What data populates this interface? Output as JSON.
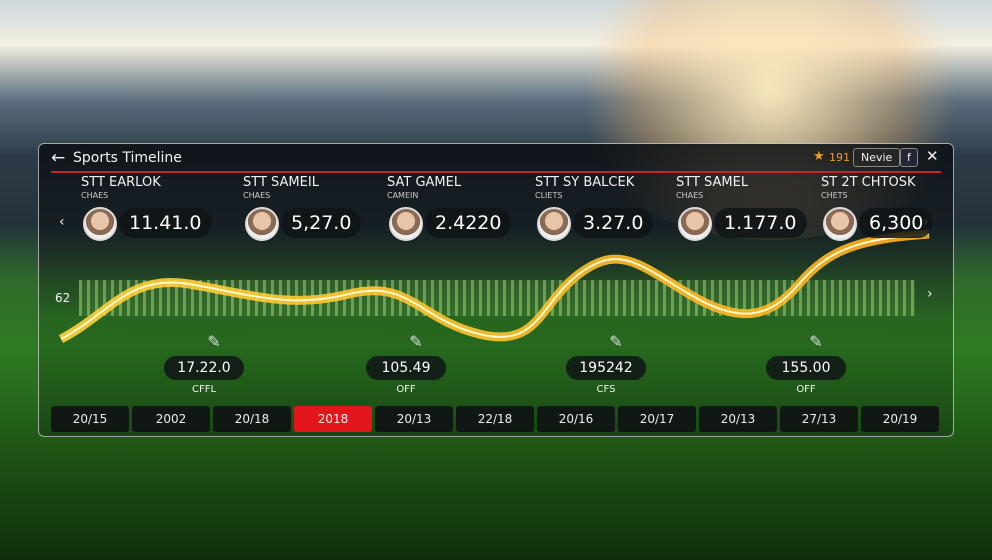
{
  "header": {
    "title": "Sports Timeline",
    "rating": "191",
    "button": "Nevie",
    "icon": "f"
  },
  "cards": [
    {
      "name": "STT EARLOK",
      "sub": "CHAES",
      "value": "11.41.0"
    },
    {
      "name": "STT SAMEIL",
      "sub": "CHAES",
      "value": "5,27.0"
    },
    {
      "name": "SAT GAMEL",
      "sub": "CAMEIN",
      "value": "2.4220"
    },
    {
      "name": "STT SY BALCEK",
      "sub": "CLIETS",
      "value": "3.27.0"
    },
    {
      "name": "STT SAMEL",
      "sub": "CHAES",
      "value": "1.177.0"
    },
    {
      "name": "ST 2T CHTOSK",
      "sub": "CHETS",
      "value": "6,300"
    }
  ],
  "axis_label": "62",
  "markers": [
    {
      "value": "17.22.0",
      "sub": "CFFL"
    },
    {
      "value": "105.49",
      "sub": "OFF"
    },
    {
      "value": "195242",
      "sub": "CFS"
    },
    {
      "value": "155.00",
      "sub": "OFF"
    }
  ],
  "timeline": {
    "years": [
      "20/15",
      "2002",
      "20/18",
      "2018",
      "20/13",
      "22/18",
      "20/16",
      "20/17",
      "20/13",
      "27/13",
      "20/19"
    ],
    "selected": 3
  }
}
